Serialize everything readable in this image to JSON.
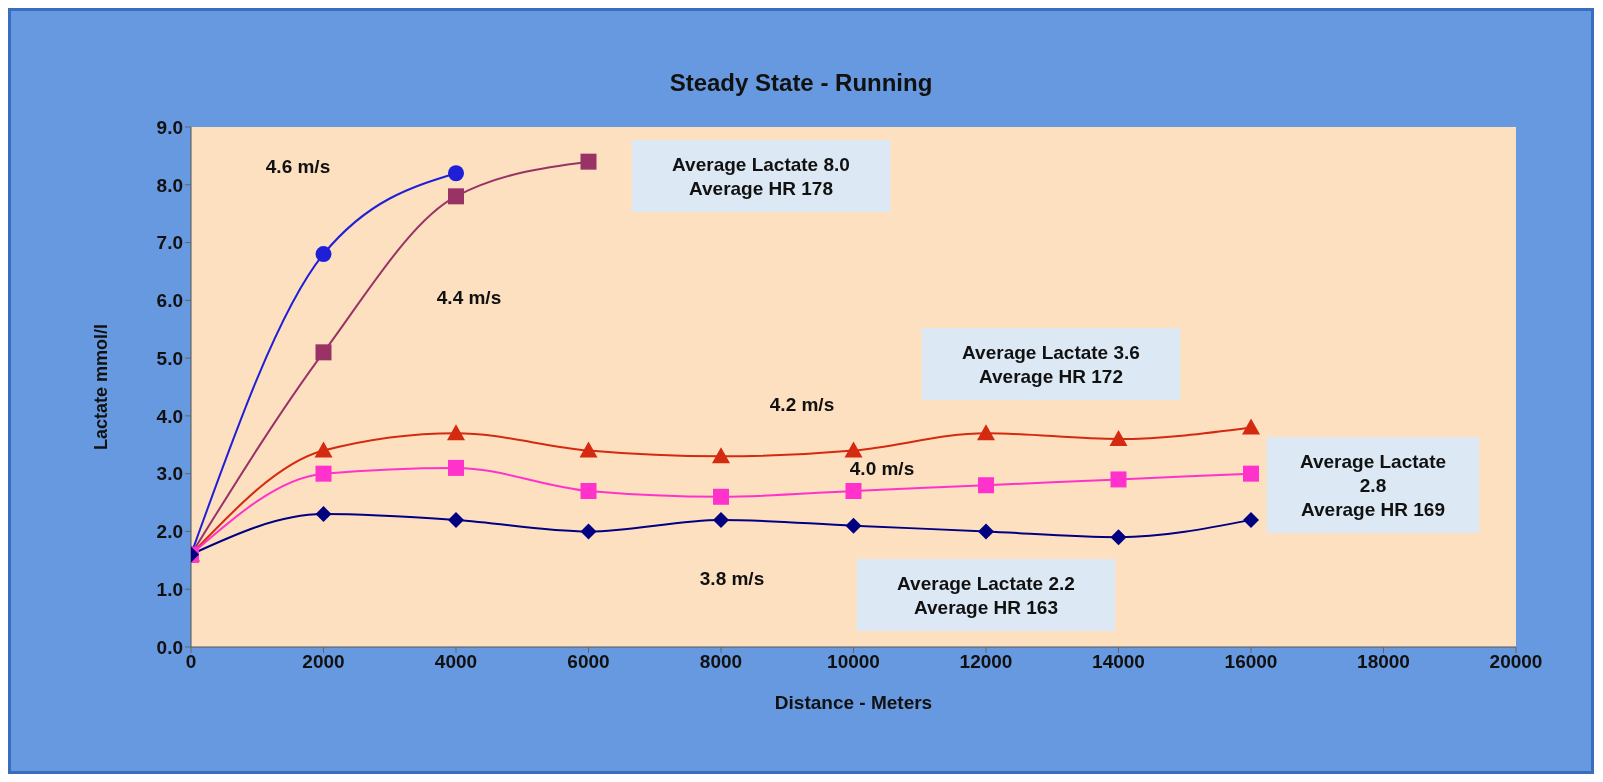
{
  "chart_data": {
    "type": "line",
    "title": "Steady State - Running",
    "xlabel": "Distance - Meters",
    "ylabel": "Lactate mmol/l",
    "xlim": [
      0,
      20000
    ],
    "xticks": [
      0,
      2000,
      4000,
      6000,
      8000,
      10000,
      12000,
      14000,
      16000,
      18000,
      20000
    ],
    "ylim": [
      0,
      9
    ],
    "yticks": [
      {
        "value": 0,
        "label": "0.0"
      },
      {
        "value": 1,
        "label": "1.0"
      },
      {
        "value": 2,
        "label": "2.0"
      },
      {
        "value": 3,
        "label": "3.0"
      },
      {
        "value": 4,
        "label": "4.0"
      },
      {
        "value": 5,
        "label": "5.0"
      },
      {
        "value": 6,
        "label": "6.0"
      },
      {
        "value": 7,
        "label": "7.0"
      },
      {
        "value": 8,
        "label": "8.0"
      },
      {
        "value": 9,
        "label": "9.0"
      }
    ],
    "line_style": "solid",
    "series": [
      {
        "color": "#1f1fd8",
        "marker": "circle",
        "x": [
          0,
          2000,
          4000
        ],
        "values": [
          1.6,
          6.8,
          8.2
        ]
      },
      {
        "color": "#993366",
        "marker": "square",
        "x": [
          0,
          2000,
          4000,
          6000
        ],
        "values": [
          1.6,
          5.1,
          7.8,
          8.4
        ]
      },
      {
        "color": "#d42a10",
        "marker": "triangle",
        "x": [
          0,
          2000,
          4000,
          6000,
          8000,
          10000,
          12000,
          14000,
          16000
        ],
        "values": [
          1.6,
          3.4,
          3.7,
          3.4,
          3.3,
          3.4,
          3.7,
          3.6,
          3.8
        ]
      },
      {
        "color": "#ff33cc",
        "marker": "square",
        "x": [
          0,
          2000,
          4000,
          6000,
          8000,
          10000,
          12000,
          14000,
          16000
        ],
        "values": [
          1.6,
          3.0,
          3.1,
          2.7,
          2.6,
          2.7,
          2.8,
          2.9,
          3.0
        ]
      },
      {
        "color": "#000080",
        "marker": "diamond",
        "x": [
          0,
          2000,
          4000,
          6000,
          8000,
          10000,
          12000,
          14000,
          16000
        ],
        "values": [
          1.6,
          2.3,
          2.2,
          2.0,
          2.2,
          2.1,
          2.0,
          1.9,
          2.2
        ]
      }
    ],
    "annotations": [
      "4.6 m/s",
      "4.4 m/s",
      "4.2 m/s",
      "4.0 m/s",
      "3.8 m/s",
      "Average Lactate 8.0\nAverage HR 178",
      "Average Lactate 3.6\nAverage HR 172",
      "Average Lactate\n2.8\nAverage HR 169",
      "Average Lactate 2.2\nAverage HR 163"
    ]
  }
}
